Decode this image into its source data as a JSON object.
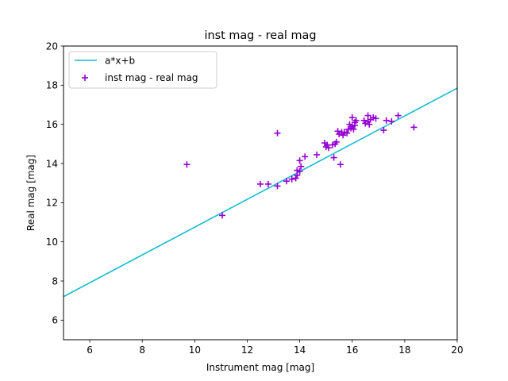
{
  "chart_data": {
    "type": "scatter",
    "title": "inst mag - real mag",
    "xlabel": "Instrument mag [mag]",
    "ylabel": "Real mag [mag]",
    "xlim": [
      5,
      20
    ],
    "ylim": [
      5,
      20
    ],
    "xticks": [
      6,
      8,
      10,
      12,
      14,
      16,
      18,
      20
    ],
    "yticks": [
      6,
      8,
      10,
      12,
      14,
      16,
      18,
      20
    ],
    "grid": false,
    "legend_position": "top-left",
    "series": [
      {
        "name": "a*x+b",
        "kind": "line",
        "color": "#17becf",
        "x": [
          5,
          20
        ],
        "y": [
          7.2,
          17.85
        ]
      },
      {
        "name": "inst mag - real mag",
        "kind": "scatter",
        "marker": "+",
        "color": "#9400d3",
        "points": [
          [
            9.7,
            13.95
          ],
          [
            11.05,
            11.35
          ],
          [
            12.5,
            12.95
          ],
          [
            12.8,
            12.95
          ],
          [
            13.15,
            12.85
          ],
          [
            13.15,
            15.55
          ],
          [
            13.5,
            13.1
          ],
          [
            13.7,
            13.2
          ],
          [
            13.85,
            13.25
          ],
          [
            13.9,
            13.4
          ],
          [
            13.9,
            13.65
          ],
          [
            14.0,
            13.6
          ],
          [
            14.0,
            14.15
          ],
          [
            14.05,
            13.85
          ],
          [
            14.2,
            14.35
          ],
          [
            14.65,
            14.45
          ],
          [
            14.95,
            15.05
          ],
          [
            15.0,
            14.85
          ],
          [
            15.05,
            14.95
          ],
          [
            15.1,
            14.8
          ],
          [
            15.25,
            14.95
          ],
          [
            15.3,
            14.3
          ],
          [
            15.35,
            15.0
          ],
          [
            15.4,
            15.1
          ],
          [
            15.45,
            15.65
          ],
          [
            15.5,
            15.5
          ],
          [
            15.55,
            13.95
          ],
          [
            15.6,
            15.6
          ],
          [
            15.65,
            15.45
          ],
          [
            15.7,
            15.6
          ],
          [
            15.8,
            15.55
          ],
          [
            15.85,
            15.75
          ],
          [
            15.9,
            16.0
          ],
          [
            15.95,
            15.8
          ],
          [
            16.0,
            15.9
          ],
          [
            16.0,
            16.35
          ],
          [
            16.05,
            15.75
          ],
          [
            16.1,
            16.1
          ],
          [
            16.15,
            16.2
          ],
          [
            16.1,
            15.95
          ],
          [
            16.45,
            16.2
          ],
          [
            16.5,
            16.05
          ],
          [
            16.6,
            16.15
          ],
          [
            16.6,
            16.45
          ],
          [
            16.65,
            16.0
          ],
          [
            16.7,
            16.25
          ],
          [
            16.8,
            16.35
          ],
          [
            16.9,
            16.3
          ],
          [
            17.2,
            15.7
          ],
          [
            17.3,
            16.2
          ],
          [
            17.5,
            16.15
          ],
          [
            17.75,
            16.45
          ],
          [
            18.35,
            15.85
          ]
        ]
      }
    ]
  }
}
